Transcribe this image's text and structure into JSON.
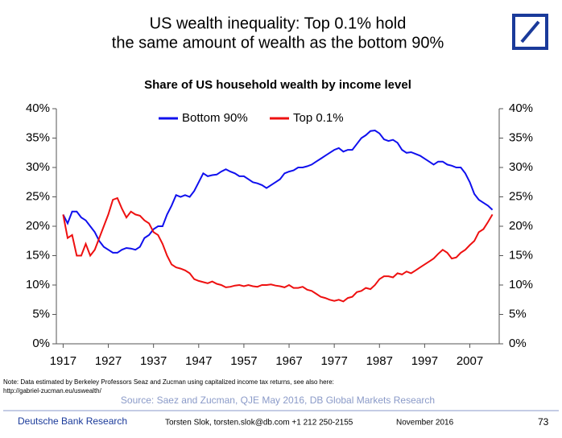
{
  "header": {
    "title_lines": [
      "US wealth inequality: Top 0.1% hold",
      "the same amount of wealth as the bottom 90%"
    ]
  },
  "chart_data": {
    "type": "line",
    "title": "Share of US household wealth by income level",
    "x": [
      1917,
      1918,
      1919,
      1920,
      1921,
      1922,
      1923,
      1924,
      1925,
      1926,
      1927,
      1928,
      1929,
      1930,
      1931,
      1932,
      1933,
      1934,
      1935,
      1936,
      1937,
      1938,
      1939,
      1940,
      1941,
      1942,
      1943,
      1944,
      1945,
      1946,
      1947,
      1948,
      1949,
      1950,
      1951,
      1952,
      1953,
      1954,
      1955,
      1956,
      1957,
      1958,
      1959,
      1960,
      1961,
      1962,
      1963,
      1964,
      1965,
      1966,
      1967,
      1968,
      1969,
      1970,
      1971,
      1972,
      1973,
      1974,
      1975,
      1976,
      1977,
      1978,
      1979,
      1980,
      1981,
      1982,
      1983,
      1984,
      1985,
      1986,
      1987,
      1988,
      1989,
      1990,
      1991,
      1992,
      1993,
      1994,
      1995,
      1996,
      1997,
      1998,
      1999,
      2000,
      2001,
      2002,
      2003,
      2004,
      2005,
      2006,
      2007,
      2008,
      2009,
      2010,
      2011,
      2012
    ],
    "series": [
      {
        "name": "Bottom 90%",
        "color": "#1010ee",
        "values": [
          22,
          20.5,
          22.5,
          22.5,
          21.5,
          21,
          20,
          19,
          17.5,
          16.5,
          16,
          15.5,
          15.5,
          16,
          16.3,
          16.2,
          16,
          16.5,
          18,
          18.5,
          19.5,
          20,
          20,
          22,
          23.5,
          25.3,
          25,
          25.3,
          25,
          26,
          27.5,
          29,
          28.5,
          28.7,
          28.8,
          29.3,
          29.7,
          29.3,
          29,
          28.5,
          28.5,
          28,
          27.5,
          27.3,
          27,
          26.5,
          27,
          27.5,
          28,
          29,
          29.3,
          29.5,
          30,
          30,
          30.2,
          30.5,
          31,
          31.5,
          32,
          32.5,
          33,
          33.3,
          32.7,
          33,
          33,
          34,
          35,
          35.5,
          36.2,
          36.3,
          35.8,
          34.8,
          34.5,
          34.7,
          34.2,
          33,
          32.5,
          32.6,
          32.3,
          32,
          31.5,
          31,
          30.5,
          31,
          31,
          30.5,
          30.3,
          30,
          30,
          29,
          27.5,
          25.5,
          24.5,
          24,
          23.5,
          22.8
        ]
      },
      {
        "name": "Top 0.1%",
        "color": "#ee1010",
        "values": [
          22,
          18,
          18.5,
          15,
          15,
          17,
          15,
          16,
          18,
          20,
          22,
          24.5,
          24.8,
          23,
          21.5,
          22.5,
          22,
          21.8,
          21,
          20.5,
          19,
          18.5,
          17,
          15,
          13.5,
          13,
          12.8,
          12.5,
          12,
          11,
          10.7,
          10.5,
          10.3,
          10.6,
          10.2,
          10,
          9.6,
          9.7,
          9.9,
          10,
          9.8,
          10,
          9.8,
          9.7,
          10,
          10,
          10.1,
          9.9,
          9.8,
          9.6,
          10,
          9.5,
          9.5,
          9.7,
          9.2,
          9,
          8.5,
          8,
          7.8,
          7.5,
          7.3,
          7.5,
          7.2,
          7.8,
          8,
          8.8,
          9,
          9.5,
          9.3,
          10,
          11,
          11.5,
          11.5,
          11.3,
          12,
          11.8,
          12.3,
          12,
          12.5,
          13,
          13.5,
          14,
          14.5,
          15.3,
          16,
          15.5,
          14.5,
          14.7,
          15.5,
          16,
          16.8,
          17.5,
          19,
          19.5,
          20.7,
          22
        ]
      }
    ],
    "xlim": [
      1915.5,
      2013.5
    ],
    "xticks": [
      1917,
      1927,
      1937,
      1947,
      1957,
      1967,
      1977,
      1987,
      1997,
      2007
    ],
    "ylim": [
      0,
      40
    ],
    "yticks": [
      {
        "value": 0,
        "label": "0%"
      },
      {
        "value": 5,
        "label": "5%"
      },
      {
        "value": 10,
        "label": "10%"
      },
      {
        "value": 15,
        "label": "15%"
      },
      {
        "value": 20,
        "label": "20%"
      },
      {
        "value": 25,
        "label": "25%"
      },
      {
        "value": 30,
        "label": "30%"
      },
      {
        "value": 35,
        "label": "35%"
      },
      {
        "value": 40,
        "label": "40%"
      }
    ],
    "y2lim": [
      0,
      40
    ],
    "y2ticks": [
      {
        "value": 0,
        "label": "0%"
      },
      {
        "value": 5,
        "label": "5%"
      },
      {
        "value": 10,
        "label": "10%"
      },
      {
        "value": 15,
        "label": "15%"
      },
      {
        "value": 20,
        "label": "20%"
      },
      {
        "value": 25,
        "label": "25%"
      },
      {
        "value": 30,
        "label": "30%"
      },
      {
        "value": 35,
        "label": "35%"
      },
      {
        "value": 40,
        "label": "40%"
      }
    ],
    "legend": "top"
  },
  "note_lines": [
    "Note: Data estimated by Berkeley Professors Seaz and Zucman using capitalized income tax returns, see also here:",
    "http://gabriel-zucman.eu/uswealth/"
  ],
  "source": "Source: Saez and Zucman, QJE May 2016, DB Global Markets Research",
  "footer": {
    "brand": "Deutsche Bank Research",
    "contact": "Torsten Slok, torsten.slok@db.com +1 212 250-2155",
    "date": "November 2016",
    "page": "73"
  }
}
